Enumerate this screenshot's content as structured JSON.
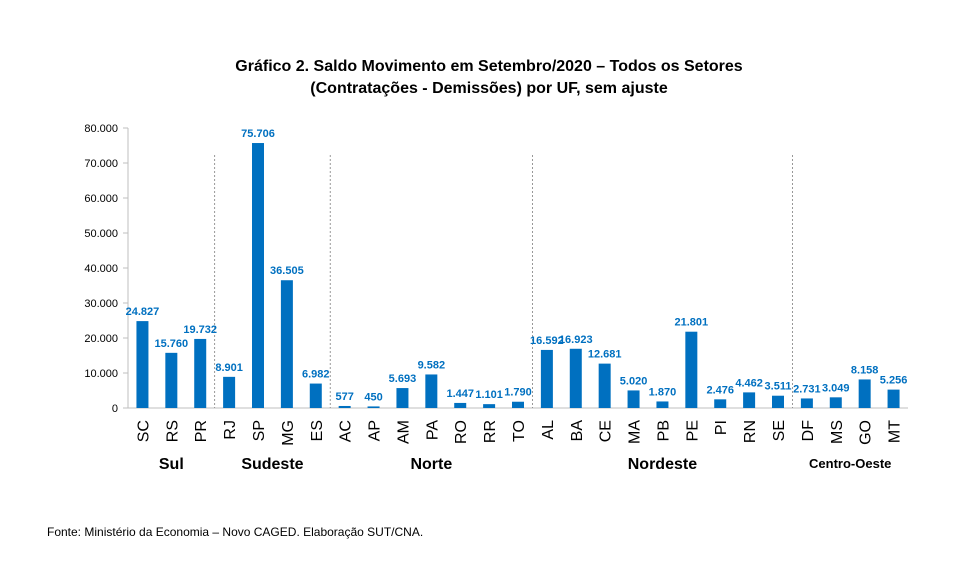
{
  "title_line1": "Gráfico 2. Saldo Movimento em Setembro/2020 – Todos os Setores",
  "title_line2": "(Contratações - Demissões) por UF, sem ajuste",
  "source": "Fonte: Ministério da Economia – Novo CAGED. Elaboração SUT/CNA.",
  "colors": {
    "bar": "#0070C0",
    "label": "#0070C0",
    "axis": "#bfbfbf"
  },
  "chart_data": {
    "type": "bar",
    "title": "Gráfico 2. Saldo Movimento em Setembro/2020 – Todos os Setores (Contratações - Demissões) por UF, sem ajuste",
    "xlabel": "",
    "ylabel": "",
    "ylim": [
      0,
      80000
    ],
    "yticks": [
      0,
      10000,
      20000,
      30000,
      40000,
      50000,
      60000,
      70000,
      80000
    ],
    "ytick_labels": [
      "0",
      "10.000",
      "20.000",
      "30.000",
      "40.000",
      "50.000",
      "60.000",
      "70.000",
      "80.000"
    ],
    "grid": false,
    "categories": [
      "SC",
      "RS",
      "PR",
      "RJ",
      "SP",
      "MG",
      "ES",
      "AC",
      "AP",
      "AM",
      "PA",
      "RO",
      "RR",
      "TO",
      "AL",
      "BA",
      "CE",
      "MA",
      "PB",
      "PE",
      "PI",
      "RN",
      "SE",
      "DF",
      "MS",
      "GO",
      "MT"
    ],
    "values": [
      24827,
      15760,
      19732,
      8901,
      75706,
      36505,
      6982,
      577,
      450,
      5693,
      9582,
      1447,
      1101,
      1790,
      16592,
      16923,
      12681,
      5020,
      1870,
      21801,
      2476,
      4462,
      3511,
      2731,
      3049,
      8158,
      5256
    ],
    "value_labels": [
      "24.827",
      "15.760",
      "19.732",
      "8.901",
      "75.706",
      "36.505",
      "6.982",
      "577",
      "450",
      "5.693",
      "9.582",
      "1.447",
      "1.101",
      "1.790",
      "16.592",
      "16.923",
      "12.681",
      "5.020",
      "1.870",
      "21.801",
      "2.476",
      "4.462",
      "3.511",
      "2.731",
      "3.049",
      "8.158",
      "5.256"
    ],
    "groups": [
      {
        "name": "Sul",
        "start": 0,
        "end": 2
      },
      {
        "name": "Sudeste",
        "start": 3,
        "end": 6
      },
      {
        "name": "Norte",
        "start": 7,
        "end": 13
      },
      {
        "name": "Nordeste",
        "start": 14,
        "end": 22
      },
      {
        "name": "Centro-Oeste",
        "start": 23,
        "end": 26
      }
    ]
  }
}
